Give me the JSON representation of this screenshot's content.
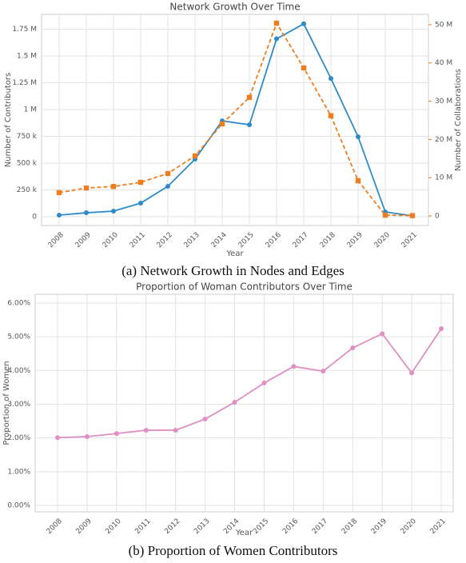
{
  "chart_data": [
    {
      "type": "line",
      "title": "Network Growth Over Time",
      "caption": "(a) Network Growth in Nodes and Edges",
      "x_label": "Year",
      "y_label": "Number of Contributors",
      "y2_label": "Number of Collaborations",
      "categories": [
        "2008",
        "2009",
        "2010",
        "2011",
        "2012",
        "2013",
        "2014",
        "2015",
        "2016",
        "2017",
        "2018",
        "2019",
        "2020",
        "2021"
      ],
      "series": [
        {
          "name": "Number of Contributors",
          "color": "#2e8bc9",
          "marker": "circle",
          "dash": "solid",
          "values": [
            15000,
            37000,
            52000,
            127000,
            284000,
            537000,
            895000,
            858000,
            1660000,
            1800000,
            1290000,
            746000,
            45000,
            8000
          ]
        },
        {
          "name": "Number of Collaborations",
          "color": "#ee7d1f",
          "marker": "square",
          "dash": "dashed",
          "axis": "y2",
          "values": [
            6100000,
            7300000,
            7700000,
            8800000,
            11100000,
            15700000,
            24100000,
            31000000,
            50400000,
            38700000,
            26200000,
            9200000,
            200000,
            100000
          ]
        }
      ],
      "ylim": [
        -82000,
        1888000
      ],
      "yticks": [
        0,
        {
          "value": 250000,
          "label": "250 k"
        },
        {
          "value": 500000,
          "label": "500 k"
        },
        {
          "value": 750000,
          "label": "750 k"
        },
        {
          "value": 1000000,
          "label": "1 M"
        },
        {
          "value": 1250000,
          "label": "1.25 M"
        },
        {
          "value": 1500000,
          "label": "1.5 M"
        },
        {
          "value": 1750000,
          "label": "1.75 M"
        }
      ],
      "y2lim": [
        -2500000,
        52700000
      ],
      "y2ticks": [
        0,
        {
          "value": 10000000,
          "label": "10 M"
        },
        {
          "value": 20000000,
          "label": "20 M"
        },
        {
          "value": 30000000,
          "label": "30 M"
        },
        {
          "value": 40000000,
          "label": "40 M"
        },
        {
          "value": 50000000,
          "label": "50 M"
        }
      ],
      "grid": true
    },
    {
      "type": "line",
      "title": "Proportion of Woman Contributors Over Time",
      "caption": "(b) Proportion of Women Contributors",
      "x_label": "Year",
      "y_label": "Proportion of Women",
      "categories": [
        "2008",
        "2009",
        "2010",
        "2011",
        "2012",
        "2013",
        "2014",
        "2015",
        "2016",
        "2017",
        "2018",
        "2019",
        "2020",
        "2021"
      ],
      "series": [
        {
          "name": "Proportion of Women",
          "color": "#e08fc4",
          "marker": "circle",
          "dash": "solid",
          "values": [
            2.01,
            2.04,
            2.13,
            2.23,
            2.23,
            2.56,
            3.06,
            3.63,
            4.12,
            3.98,
            4.67,
            5.09,
            3.93,
            5.24
          ]
        }
      ],
      "ylim": [
        -0.19,
        6.26
      ],
      "yticks": [
        {
          "value": 0,
          "label": "0.00%"
        },
        {
          "value": 1,
          "label": "1.00%"
        },
        {
          "value": 2,
          "label": "2.00%"
        },
        {
          "value": 3,
          "label": "3.00%"
        },
        {
          "value": 4,
          "label": "4.00%"
        },
        {
          "value": 5,
          "label": "5.00%"
        },
        {
          "value": 6,
          "label": "6.00%"
        }
      ],
      "grid": true
    }
  ]
}
